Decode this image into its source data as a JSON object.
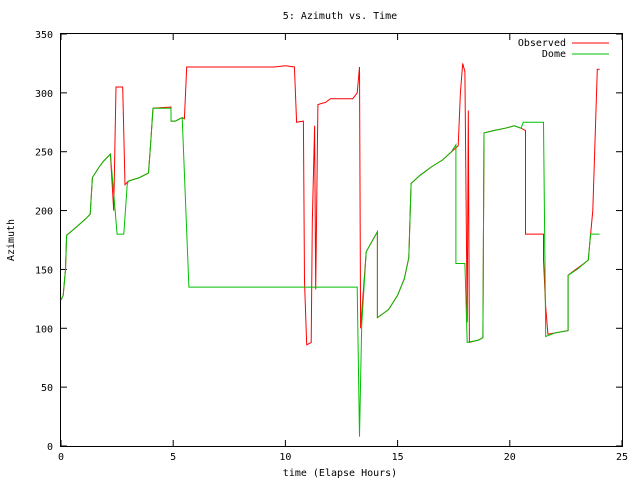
{
  "chart_data": {
    "type": "line",
    "title": "5: Azimuth vs. Time",
    "xlabel": "time (Elapse Hours)",
    "ylabel": "Azimuth",
    "xlim": [
      0,
      25
    ],
    "ylim": [
      0,
      350
    ],
    "xticks": [
      0,
      5,
      10,
      15,
      20,
      25
    ],
    "yticks": [
      0,
      50,
      100,
      150,
      200,
      250,
      300,
      350
    ],
    "grid": false,
    "legend_position": "top-right",
    "series": [
      {
        "name": "Observed",
        "color": "#ff0000",
        "points": [
          [
            0.0,
            124
          ],
          [
            0.1,
            128
          ],
          [
            0.2,
            150
          ],
          [
            0.25,
            179
          ],
          [
            0.5,
            183
          ],
          [
            0.8,
            188
          ],
          [
            1.1,
            193
          ],
          [
            1.3,
            197
          ],
          [
            1.4,
            228
          ],
          [
            1.7,
            237
          ],
          [
            1.9,
            242
          ],
          [
            2.2,
            248
          ],
          [
            2.35,
            200
          ],
          [
            2.45,
            305
          ],
          [
            2.75,
            305
          ],
          [
            2.85,
            222
          ],
          [
            3.0,
            225
          ],
          [
            3.5,
            228
          ],
          [
            3.9,
            232
          ],
          [
            4.0,
            259
          ],
          [
            4.1,
            287
          ],
          [
            4.9,
            288
          ],
          [
            4.9,
            276
          ],
          [
            5.1,
            276
          ],
          [
            5.4,
            279
          ],
          [
            5.5,
            278
          ],
          [
            5.6,
            322
          ],
          [
            9.5,
            322
          ],
          [
            10.0,
            323
          ],
          [
            10.4,
            322
          ],
          [
            10.5,
            275
          ],
          [
            10.8,
            276
          ],
          [
            10.85,
            140
          ],
          [
            10.95,
            86
          ],
          [
            11.15,
            88
          ],
          [
            11.2,
            190
          ],
          [
            11.3,
            272
          ],
          [
            11.35,
            133
          ],
          [
            11.45,
            290
          ],
          [
            11.6,
            291
          ],
          [
            11.8,
            292
          ],
          [
            12.0,
            295
          ],
          [
            13.0,
            295
          ],
          [
            13.2,
            300
          ],
          [
            13.3,
            322
          ],
          [
            13.35,
            100
          ],
          [
            13.6,
            165
          ],
          [
            14.1,
            182
          ],
          [
            14.1,
            109
          ],
          [
            14.6,
            116
          ],
          [
            15.0,
            128
          ],
          [
            15.3,
            142
          ],
          [
            15.5,
            160
          ],
          [
            15.6,
            223
          ],
          [
            16.0,
            230
          ],
          [
            16.5,
            237
          ],
          [
            17.0,
            243
          ],
          [
            17.4,
            250
          ],
          [
            17.7,
            255
          ],
          [
            17.8,
            300
          ],
          [
            17.9,
            325
          ],
          [
            18.0,
            318
          ],
          [
            18.1,
            105
          ],
          [
            18.15,
            285
          ],
          [
            18.2,
            88
          ],
          [
            18.6,
            90
          ],
          [
            18.8,
            92
          ],
          [
            18.85,
            266
          ],
          [
            19.3,
            268
          ],
          [
            19.8,
            270
          ],
          [
            20.2,
            272
          ],
          [
            20.5,
            270
          ],
          [
            20.7,
            268
          ],
          [
            20.7,
            180
          ],
          [
            21.3,
            180
          ],
          [
            21.5,
            180
          ],
          [
            21.5,
            158
          ],
          [
            21.6,
            118
          ],
          [
            21.7,
            95
          ],
          [
            22.0,
            96
          ],
          [
            22.6,
            98
          ],
          [
            22.6,
            145
          ],
          [
            22.8,
            148
          ],
          [
            23.3,
            155
          ],
          [
            23.5,
            158
          ],
          [
            23.55,
            170
          ],
          [
            23.7,
            200
          ],
          [
            23.9,
            320
          ],
          [
            24.0,
            320
          ]
        ]
      },
      {
        "name": "Dome",
        "color": "#00c000",
        "points": [
          [
            0.0,
            124
          ],
          [
            0.1,
            128
          ],
          [
            0.2,
            150
          ],
          [
            0.25,
            179
          ],
          [
            0.5,
            183
          ],
          [
            0.8,
            188
          ],
          [
            1.1,
            193
          ],
          [
            1.3,
            197
          ],
          [
            1.4,
            228
          ],
          [
            1.7,
            237
          ],
          [
            1.9,
            242
          ],
          [
            2.2,
            248
          ],
          [
            2.5,
            180
          ],
          [
            2.8,
            180
          ],
          [
            2.95,
            222
          ],
          [
            3.0,
            225
          ],
          [
            3.5,
            228
          ],
          [
            3.9,
            232
          ],
          [
            4.0,
            259
          ],
          [
            4.1,
            287
          ],
          [
            4.9,
            287
          ],
          [
            4.9,
            276
          ],
          [
            5.1,
            276
          ],
          [
            5.4,
            279
          ],
          [
            5.7,
            135
          ],
          [
            13.2,
            135
          ],
          [
            13.3,
            8
          ],
          [
            13.4,
            103
          ],
          [
            13.6,
            165
          ],
          [
            14.1,
            182
          ],
          [
            14.1,
            109
          ],
          [
            14.6,
            116
          ],
          [
            15.0,
            128
          ],
          [
            15.3,
            142
          ],
          [
            15.5,
            160
          ],
          [
            15.6,
            223
          ],
          [
            16.0,
            230
          ],
          [
            16.5,
            237
          ],
          [
            17.0,
            243
          ],
          [
            17.4,
            250
          ],
          [
            17.6,
            256
          ],
          [
            17.6,
            155
          ],
          [
            18.0,
            155
          ],
          [
            18.1,
            88
          ],
          [
            18.6,
            90
          ],
          [
            18.8,
            92
          ],
          [
            18.85,
            266
          ],
          [
            19.3,
            268
          ],
          [
            19.8,
            270
          ],
          [
            20.2,
            272
          ],
          [
            20.5,
            270
          ],
          [
            20.6,
            275
          ],
          [
            21.4,
            275
          ],
          [
            21.5,
            275
          ],
          [
            21.6,
            93
          ],
          [
            22.0,
            96
          ],
          [
            22.6,
            98
          ],
          [
            22.6,
            145
          ],
          [
            23.0,
            150
          ],
          [
            23.5,
            158
          ],
          [
            23.6,
            180
          ],
          [
            24.0,
            180
          ]
        ]
      }
    ]
  }
}
